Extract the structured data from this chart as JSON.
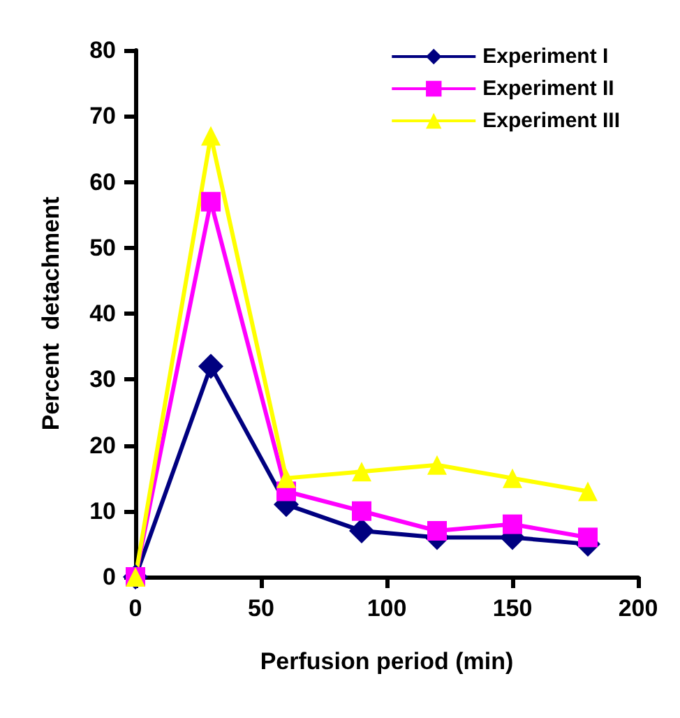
{
  "chart_data": {
    "type": "line",
    "xlabel": "Perfusion period (min)",
    "ylabel": "Percent  detachment",
    "x": [
      0,
      30,
      60,
      90,
      120,
      150,
      180
    ],
    "series": [
      {
        "name": "Experiment I",
        "color": "#000080",
        "marker": "diamond",
        "values": [
          0,
          32,
          11,
          7,
          6,
          6,
          5
        ]
      },
      {
        "name": "Experiment II",
        "color": "#ff00ff",
        "marker": "square",
        "values": [
          0,
          57,
          13,
          10,
          7,
          8,
          6
        ]
      },
      {
        "name": "Experiment III",
        "color": "#ffff00",
        "marker": "triangle",
        "values": [
          0,
          67,
          15,
          16,
          17,
          15,
          13
        ]
      }
    ],
    "xlim": [
      0,
      200
    ],
    "xticks": [
      0,
      50,
      100,
      150,
      200
    ],
    "ylim": [
      0,
      80
    ],
    "yticks": [
      0,
      10,
      20,
      30,
      40,
      50,
      60,
      70,
      80
    ],
    "grid": false,
    "legend": "top right",
    "line_style": "solid"
  }
}
